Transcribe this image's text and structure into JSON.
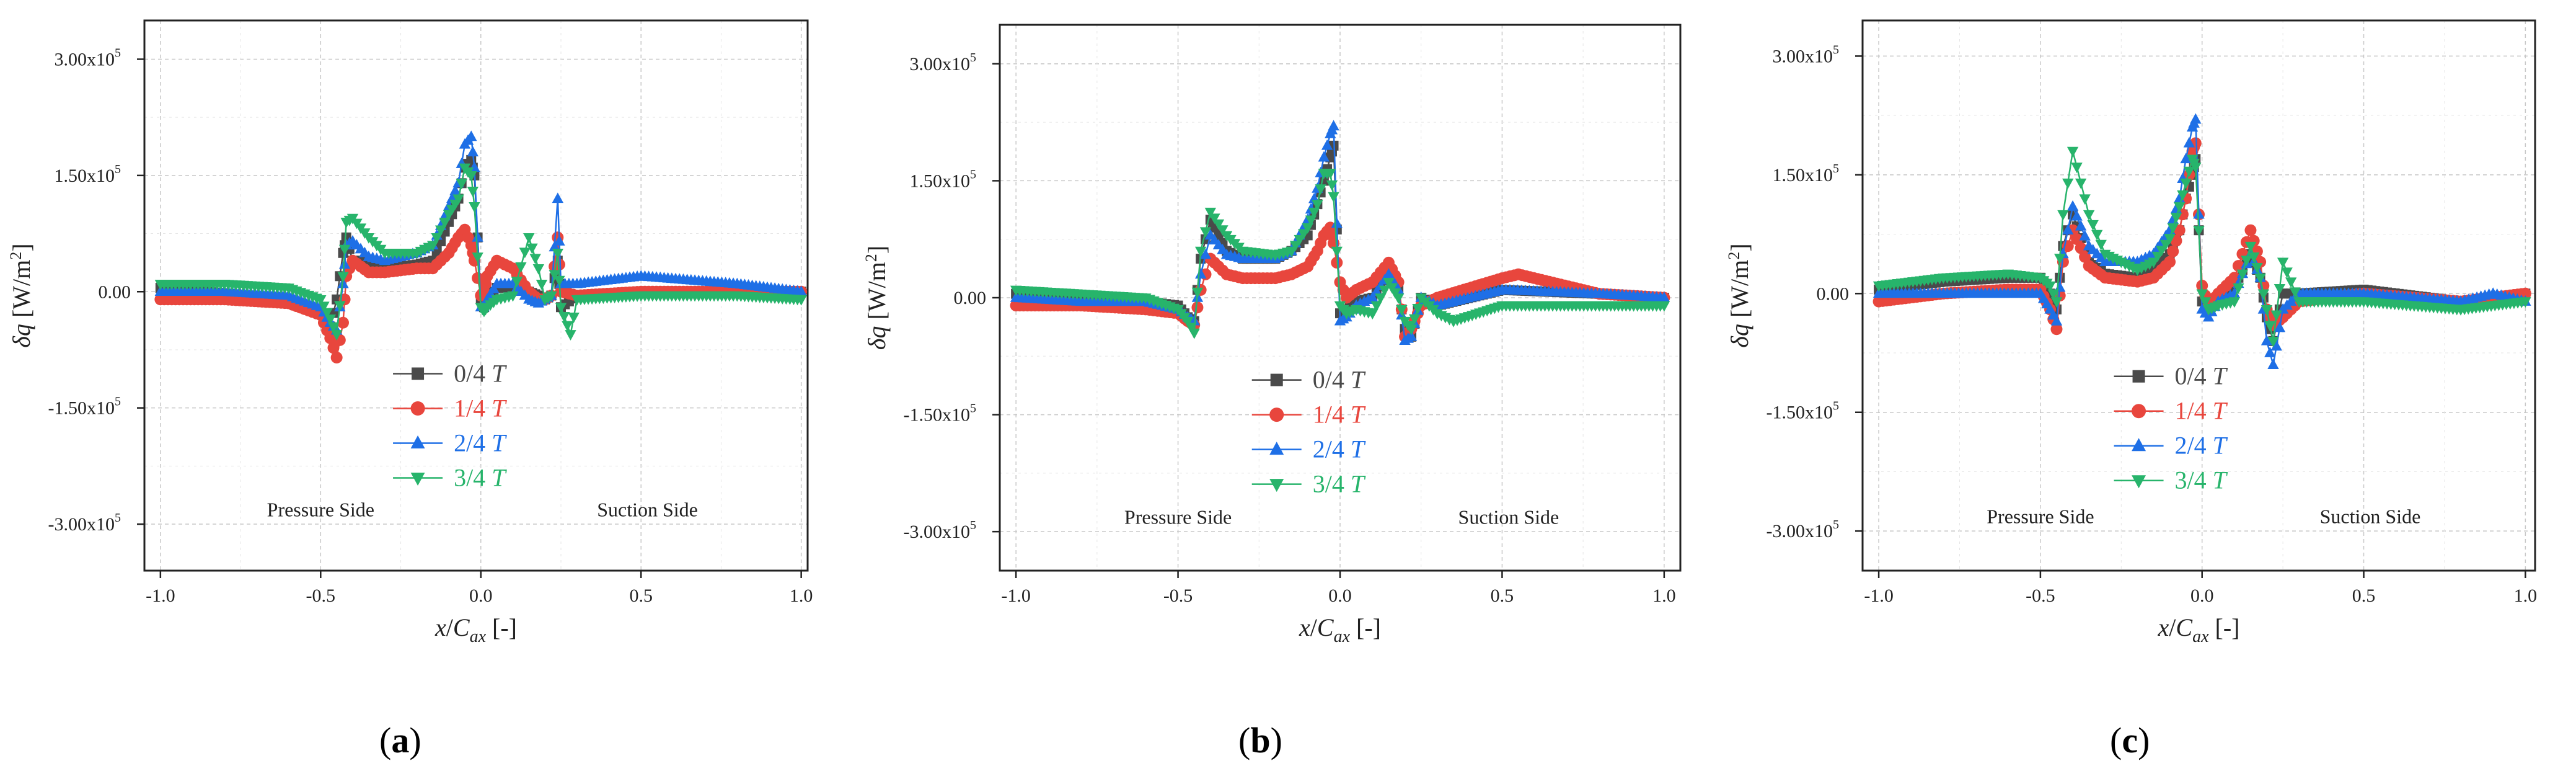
{
  "chart_data": [
    {
      "id": "a",
      "type": "scatter-line",
      "caption": "a",
      "ylabel": "δq [W/m²]",
      "xlabel": "x/Cax [-]",
      "xlim": [
        -1.05,
        1.02
      ],
      "ylim": [
        -360000.0,
        350000.0
      ],
      "xticks": [
        -1.0,
        -0.5,
        0.0,
        0.5,
        1.0
      ],
      "xtick_labels": [
        "-1.0",
        "-0.5",
        "0.0",
        "0.5",
        "1.0"
      ],
      "yticks": [
        300000,
        150000,
        0,
        -150000,
        -300000
      ],
      "ytick_labels": [
        "3.00x10",
        "1.50x10",
        "0.00",
        "-1.50x10",
        "-3.00x10"
      ],
      "ytick_exponent": "5",
      "annotations": [
        "Pressure Side",
        "Suction Side"
      ],
      "legend_position": "center-bottom",
      "series": [
        {
          "name": "0/4",
          "unit": "T",
          "color": "#4a4a4a",
          "marker": "square",
          "x": [
            -1.0,
            -0.8,
            -0.6,
            -0.5,
            -0.47,
            -0.45,
            -0.43,
            -0.42,
            -0.4,
            -0.35,
            -0.3,
            -0.2,
            -0.15,
            -0.1,
            -0.07,
            -0.05,
            -0.03,
            -0.02,
            0.0,
            0.01,
            0.02,
            0.05,
            0.1,
            0.15,
            0.18,
            0.2,
            0.22,
            0.24,
            0.25,
            0.3,
            0.5,
            0.8,
            1.0
          ],
          "y": [
            5000,
            -2000,
            -10000,
            -25000,
            -45000,
            -10000,
            50000,
            70000,
            40000,
            40000,
            30000,
            35000,
            40000,
            90000,
            120000,
            160000,
            170000,
            150000,
            -10000,
            -20000,
            -10000,
            5000,
            5000,
            0,
            -5000,
            -10000,
            -5000,
            40000,
            -20000,
            -5000,
            0,
            0,
            0
          ]
        },
        {
          "name": "1/4",
          "unit": "T",
          "color": "#e8463d",
          "marker": "circle",
          "x": [
            -1.0,
            -0.8,
            -0.6,
            -0.5,
            -0.47,
            -0.45,
            -0.43,
            -0.42,
            -0.4,
            -0.35,
            -0.3,
            -0.2,
            -0.15,
            -0.1,
            -0.07,
            -0.05,
            -0.03,
            -0.02,
            0.0,
            0.01,
            0.02,
            0.05,
            0.1,
            0.15,
            0.18,
            0.2,
            0.22,
            0.24,
            0.25,
            0.3,
            0.5,
            0.8,
            1.0
          ],
          "y": [
            -10000,
            -10000,
            -15000,
            -30000,
            -60000,
            -85000,
            -40000,
            20000,
            40000,
            25000,
            25000,
            30000,
            30000,
            50000,
            70000,
            80000,
            60000,
            40000,
            -5000,
            0,
            20000,
            40000,
            30000,
            0,
            -10000,
            -10000,
            -5000,
            70000,
            0,
            -5000,
            0,
            0,
            0
          ]
        },
        {
          "name": "2/4",
          "unit": "T",
          "color": "#1e6fe6",
          "marker": "triangle-up",
          "x": [
            -1.0,
            -0.8,
            -0.6,
            -0.5,
            -0.47,
            -0.45,
            -0.43,
            -0.42,
            -0.4,
            -0.35,
            -0.3,
            -0.2,
            -0.15,
            -0.1,
            -0.07,
            -0.05,
            -0.03,
            -0.02,
            0.0,
            0.01,
            0.02,
            0.05,
            0.1,
            0.15,
            0.18,
            0.2,
            0.22,
            0.24,
            0.25,
            0.3,
            0.5,
            0.8,
            1.0
          ],
          "y": [
            0,
            0,
            -5000,
            -20000,
            -40000,
            -50000,
            10000,
            60000,
            65000,
            45000,
            40000,
            50000,
            60000,
            110000,
            140000,
            190000,
            200000,
            160000,
            -20000,
            -20000,
            -10000,
            10000,
            10000,
            -10000,
            -15000,
            -10000,
            -5000,
            120000,
            10000,
            10000,
            20000,
            10000,
            0
          ]
        },
        {
          "name": "3/4",
          "unit": "T",
          "color": "#27b46b",
          "marker": "triangle-down",
          "x": [
            -1.0,
            -0.8,
            -0.6,
            -0.5,
            -0.47,
            -0.45,
            -0.43,
            -0.42,
            -0.4,
            -0.35,
            -0.3,
            -0.2,
            -0.15,
            -0.1,
            -0.07,
            -0.05,
            -0.03,
            -0.02,
            0.0,
            0.01,
            0.02,
            0.05,
            0.1,
            0.15,
            0.18,
            0.2,
            0.22,
            0.24,
            0.25,
            0.28,
            0.3,
            0.5,
            0.8,
            1.0
          ],
          "y": [
            10000,
            10000,
            5000,
            -10000,
            -35000,
            -55000,
            20000,
            90000,
            95000,
            70000,
            50000,
            50000,
            60000,
            100000,
            120000,
            160000,
            150000,
            110000,
            -20000,
            -25000,
            -20000,
            -10000,
            -5000,
            70000,
            30000,
            -10000,
            -5000,
            50000,
            -20000,
            -55000,
            -10000,
            -5000,
            -5000,
            -10000
          ]
        }
      ]
    },
    {
      "id": "b",
      "type": "scatter-line",
      "caption": "b",
      "ylabel": "δq [W/m²]",
      "xlabel": "x/Cax [-]",
      "xlim": [
        -1.05,
        1.05
      ],
      "ylim": [
        -350000.0,
        350000.0
      ],
      "xticks": [
        -1.0,
        -0.5,
        0.0,
        0.5,
        1.0
      ],
      "xtick_labels": [
        "-1.0",
        "-0.5",
        "0.0",
        "0.5",
        "1.0"
      ],
      "yticks": [
        300000,
        150000,
        0,
        -150000,
        -300000
      ],
      "ytick_labels": [
        "3.00x10",
        "1.50x10",
        "0.00",
        "-1.50x10",
        "-3.00x10"
      ],
      "ytick_exponent": "5",
      "annotations": [
        "Pressure Side",
        "Suction Side"
      ],
      "legend_position": "center-bottom",
      "series": [
        {
          "name": "0/4",
          "unit": "T",
          "color": "#4a4a4a",
          "marker": "square",
          "x": [
            -1.0,
            -0.8,
            -0.6,
            -0.5,
            -0.47,
            -0.45,
            -0.43,
            -0.4,
            -0.35,
            -0.3,
            -0.2,
            -0.15,
            -0.1,
            -0.07,
            -0.05,
            -0.03,
            -0.02,
            0.0,
            0.02,
            0.05,
            0.1,
            0.15,
            0.18,
            0.2,
            0.22,
            0.25,
            0.3,
            0.5,
            0.8,
            1.0
          ],
          "y": [
            5000,
            0,
            -5000,
            -10000,
            -25000,
            -30000,
            50000,
            100000,
            60000,
            50000,
            50000,
            60000,
            80000,
            120000,
            150000,
            180000,
            195000,
            -20000,
            -15000,
            -5000,
            0,
            30000,
            10000,
            -40000,
            -50000,
            0,
            -10000,
            10000,
            5000,
            0
          ]
        },
        {
          "name": "1/4",
          "unit": "T",
          "color": "#e8463d",
          "marker": "circle",
          "x": [
            -1.0,
            -0.8,
            -0.6,
            -0.5,
            -0.47,
            -0.45,
            -0.43,
            -0.4,
            -0.35,
            -0.3,
            -0.2,
            -0.15,
            -0.1,
            -0.07,
            -0.05,
            -0.03,
            -0.02,
            0.0,
            0.02,
            0.05,
            0.1,
            0.15,
            0.18,
            0.2,
            0.22,
            0.25,
            0.3,
            0.5,
            0.55,
            0.8,
            1.0
          ],
          "y": [
            -10000,
            -10000,
            -15000,
            -20000,
            -30000,
            -35000,
            10000,
            50000,
            30000,
            25000,
            25000,
            30000,
            40000,
            60000,
            80000,
            90000,
            70000,
            20000,
            0,
            10000,
            20000,
            45000,
            20000,
            -50000,
            -40000,
            -10000,
            0,
            25000,
            30000,
            5000,
            0
          ]
        },
        {
          "name": "2/4",
          "unit": "T",
          "color": "#1e6fe6",
          "marker": "triangle-up",
          "x": [
            -1.0,
            -0.8,
            -0.6,
            -0.5,
            -0.47,
            -0.45,
            -0.43,
            -0.4,
            -0.35,
            -0.3,
            -0.2,
            -0.15,
            -0.1,
            -0.07,
            -0.05,
            -0.03,
            -0.02,
            0.0,
            0.02,
            0.05,
            0.1,
            0.15,
            0.18,
            0.2,
            0.22,
            0.25,
            0.3,
            0.5,
            0.8,
            1.0
          ],
          "y": [
            0,
            -5000,
            -5000,
            -15000,
            -25000,
            -30000,
            30000,
            80000,
            55000,
            50000,
            50000,
            60000,
            100000,
            140000,
            180000,
            210000,
            220000,
            -30000,
            -25000,
            -10000,
            0,
            30000,
            10000,
            -55000,
            -50000,
            0,
            -10000,
            10000,
            5000,
            0
          ]
        },
        {
          "name": "3/4",
          "unit": "T",
          "color": "#27b46b",
          "marker": "triangle-down",
          "x": [
            -1.0,
            -0.8,
            -0.6,
            -0.5,
            -0.47,
            -0.45,
            -0.43,
            -0.4,
            -0.35,
            -0.3,
            -0.2,
            -0.15,
            -0.1,
            -0.07,
            -0.05,
            -0.03,
            -0.02,
            0.0,
            0.02,
            0.05,
            0.1,
            0.15,
            0.18,
            0.2,
            0.22,
            0.25,
            0.3,
            0.35,
            0.5,
            0.8,
            1.0
          ],
          "y": [
            10000,
            5000,
            0,
            -15000,
            -30000,
            -45000,
            60000,
            110000,
            80000,
            60000,
            55000,
            60000,
            90000,
            120000,
            160000,
            160000,
            130000,
            -10000,
            -20000,
            -15000,
            -20000,
            20000,
            0,
            -30000,
            -40000,
            0,
            -20000,
            -30000,
            -10000,
            -10000,
            -10000
          ]
        }
      ]
    },
    {
      "id": "c",
      "type": "scatter-line",
      "caption": "c",
      "ylabel": "δq [W/m²]",
      "xlabel": "x/Cax [-]",
      "xlim": [
        -1.05,
        1.03
      ],
      "ylim": [
        -350000.0,
        345000.0
      ],
      "xticks": [
        -1.0,
        -0.5,
        0.0,
        0.5,
        1.0
      ],
      "xtick_labels": [
        "-1.0",
        "-0.5",
        "0.0",
        "0.5",
        "1.0"
      ],
      "yticks": [
        300000,
        150000,
        0,
        -150000,
        -300000
      ],
      "ytick_labels": [
        "3.00x10",
        "1.50x10",
        "0.00",
        "-1.50x10",
        "-3.00x10"
      ],
      "ytick_exponent": "5",
      "annotations": [
        "Pressure Side",
        "Suction Side"
      ],
      "legend_position": "center-bottom",
      "series": [
        {
          "name": "0/4",
          "unit": "T",
          "color": "#4a4a4a",
          "marker": "square",
          "x": [
            -1.0,
            -0.8,
            -0.6,
            -0.5,
            -0.47,
            -0.45,
            -0.43,
            -0.4,
            -0.35,
            -0.3,
            -0.2,
            -0.15,
            -0.1,
            -0.07,
            -0.05,
            -0.03,
            -0.02,
            0.0,
            0.02,
            0.05,
            0.1,
            0.15,
            0.18,
            0.2,
            0.22,
            0.25,
            0.3,
            0.5,
            0.8,
            1.0
          ],
          "y": [
            5000,
            15000,
            20000,
            20000,
            0,
            -20000,
            60000,
            100000,
            40000,
            25000,
            20000,
            30000,
            50000,
            80000,
            120000,
            150000,
            170000,
            -10000,
            -20000,
            -5000,
            10000,
            50000,
            20000,
            -30000,
            -60000,
            0,
            0,
            5000,
            -10000,
            0
          ]
        },
        {
          "name": "1/4",
          "unit": "T",
          "color": "#e8463d",
          "marker": "circle",
          "x": [
            -1.0,
            -0.8,
            -0.6,
            -0.5,
            -0.47,
            -0.45,
            -0.43,
            -0.4,
            -0.35,
            -0.3,
            -0.2,
            -0.15,
            -0.1,
            -0.07,
            -0.05,
            -0.03,
            -0.02,
            0.0,
            0.02,
            0.05,
            0.1,
            0.15,
            0.18,
            0.2,
            0.22,
            0.25,
            0.3,
            0.5,
            0.8,
            1.0
          ],
          "y": [
            -10000,
            0,
            5000,
            5000,
            -20000,
            -45000,
            40000,
            80000,
            35000,
            20000,
            15000,
            20000,
            40000,
            80000,
            120000,
            180000,
            190000,
            10000,
            -15000,
            0,
            20000,
            80000,
            40000,
            -20000,
            -40000,
            -30000,
            -10000,
            0,
            -10000,
            0
          ]
        },
        {
          "name": "2/4",
          "unit": "T",
          "color": "#1e6fe6",
          "marker": "triangle-up",
          "x": [
            -1.0,
            -0.8,
            -0.6,
            -0.5,
            -0.47,
            -0.45,
            -0.43,
            -0.4,
            -0.35,
            -0.3,
            -0.2,
            -0.15,
            -0.1,
            -0.07,
            -0.05,
            -0.03,
            -0.02,
            0.0,
            0.02,
            0.05,
            0.1,
            0.15,
            0.18,
            0.2,
            0.22,
            0.25,
            0.3,
            0.5,
            0.8,
            0.9,
            1.0
          ],
          "y": [
            0,
            0,
            0,
            0,
            -20000,
            -35000,
            50000,
            110000,
            60000,
            40000,
            40000,
            50000,
            80000,
            120000,
            170000,
            210000,
            220000,
            -20000,
            -30000,
            -10000,
            0,
            50000,
            20000,
            -60000,
            -90000,
            -20000,
            0,
            0,
            -10000,
            0,
            -10000
          ]
        },
        {
          "name": "3/4",
          "unit": "T",
          "color": "#27b46b",
          "marker": "triangle-down",
          "x": [
            -1.0,
            -0.8,
            -0.6,
            -0.5,
            -0.47,
            -0.45,
            -0.43,
            -0.4,
            -0.35,
            -0.3,
            -0.2,
            -0.15,
            -0.1,
            -0.07,
            -0.05,
            -0.03,
            -0.02,
            0.0,
            0.02,
            0.05,
            0.1,
            0.15,
            0.18,
            0.2,
            0.22,
            0.25,
            0.3,
            0.5,
            0.8,
            1.0
          ],
          "y": [
            10000,
            20000,
            25000,
            20000,
            10000,
            -10000,
            100000,
            180000,
            100000,
            50000,
            30000,
            40000,
            70000,
            110000,
            140000,
            170000,
            160000,
            0,
            -20000,
            -15000,
            -10000,
            60000,
            20000,
            -20000,
            -60000,
            40000,
            -10000,
            -10000,
            -20000,
            -10000
          ]
        }
      ]
    }
  ]
}
